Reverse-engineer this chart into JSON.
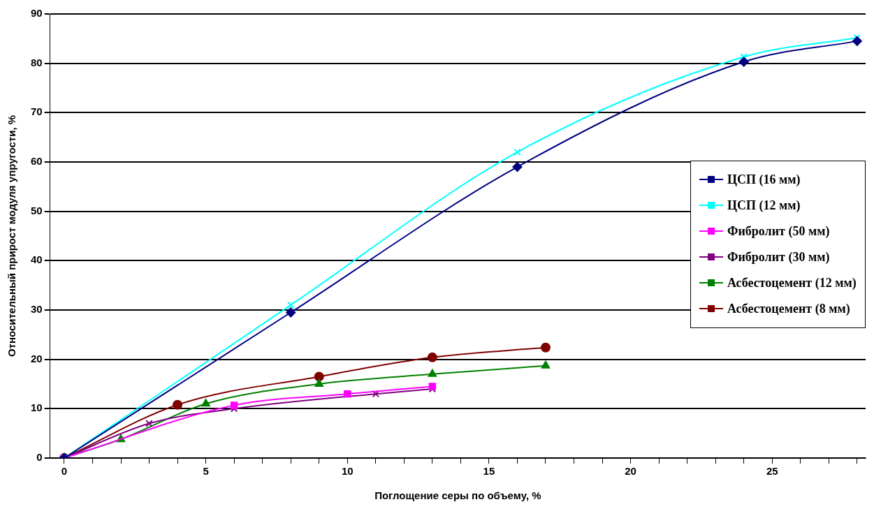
{
  "chart_data": {
    "type": "line",
    "xlabel": "Поглощение серы по объему, %",
    "ylabel": "Относительный прирост модуля упругости, %",
    "xlim": [
      -0.5,
      28.3
    ],
    "ylim": [
      0,
      90
    ],
    "xticks": [
      0,
      {
        "value": 1,
        "label": null
      },
      {
        "value": 2,
        "label": null
      },
      {
        "value": 3,
        "label": null
      },
      {
        "value": 4,
        "label": null
      },
      5,
      {
        "value": 6,
        "label": null
      },
      {
        "value": 7,
        "label": null
      },
      {
        "value": 8,
        "label": null
      },
      {
        "value": 9,
        "label": null
      },
      10,
      {
        "value": 11,
        "label": null
      },
      {
        "value": 12,
        "label": null
      },
      {
        "value": 13,
        "label": null
      },
      {
        "value": 14,
        "label": null
      },
      15,
      {
        "value": 16,
        "label": null
      },
      {
        "value": 17,
        "label": null
      },
      {
        "value": 18,
        "label": null
      },
      {
        "value": 19,
        "label": null
      },
      20,
      {
        "value": 21,
        "label": null
      },
      {
        "value": 22,
        "label": null
      },
      {
        "value": 23,
        "label": null
      },
      {
        "value": 24,
        "label": null
      },
      25,
      {
        "value": 26,
        "label": null
      },
      {
        "value": 27,
        "label": null
      },
      {
        "value": 28,
        "label": null
      }
    ],
    "yticks": [
      0,
      10,
      20,
      30,
      40,
      50,
      60,
      70,
      80,
      90
    ],
    "grid": "y",
    "legend": "right",
    "series": [
      {
        "name": "ЦСП (16 мм)",
        "color": "#000080",
        "marker": "diamond",
        "x": [
          0,
          8,
          16,
          24,
          28
        ],
        "values": [
          0,
          29.5,
          59,
          80.3,
          84.5
        ]
      },
      {
        "name": "ЦСП (12 мм)",
        "color": "#00ffff",
        "marker": "cross",
        "x": [
          0,
          8,
          16,
          24,
          28
        ],
        "values": [
          0,
          31,
          62,
          81.3,
          85.2
        ]
      },
      {
        "name": "Фибролит (50 мм)",
        "color": "#ff00ff",
        "marker": "square",
        "x": [
          0,
          6,
          10,
          13
        ],
        "values": [
          0,
          10.7,
          13,
          14.5
        ]
      },
      {
        "name": "Фибролит (30 мм)",
        "color": "#800080",
        "marker": "cross",
        "x": [
          0,
          3,
          6,
          11,
          13
        ],
        "values": [
          0,
          7,
          10,
          13,
          14
        ]
      },
      {
        "name": "Асбестоцемент (12 мм)",
        "color": "#008000",
        "marker": "triangle",
        "x": [
          0,
          2,
          5,
          9,
          13,
          17
        ],
        "values": [
          0,
          3.8,
          11,
          15,
          17,
          18.7
        ]
      },
      {
        "name": "Асбестоцемент (8 мм)",
        "color": "#800000",
        "marker": "circle",
        "x": [
          0,
          4,
          9,
          13,
          17
        ],
        "values": [
          0,
          10.8,
          16.5,
          20.4,
          22.4
        ]
      }
    ]
  }
}
